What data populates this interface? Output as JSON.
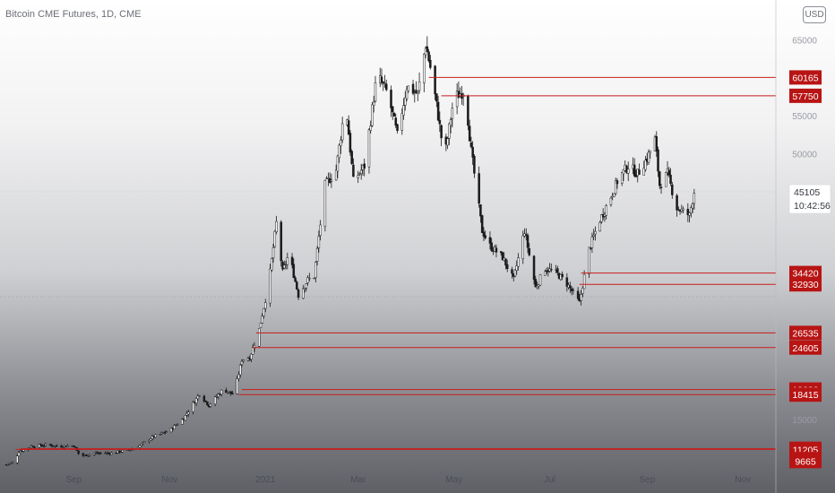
{
  "header": {
    "title": "Bitcoin CME Futures, 1D, CME",
    "currency": "USD"
  },
  "colors": {
    "level_line": "#c81c1c",
    "level_label_bg": "#b81414",
    "candle": "#1a1a1a",
    "price_line": "#ffffff"
  },
  "chart_data": {
    "type": "candlestick",
    "x_ticks": [
      {
        "label": "Sep",
        "date": "2020-09-01"
      },
      {
        "label": "Nov",
        "date": "2020-11-01"
      },
      {
        "label": "2021",
        "date": "2021-01-01"
      },
      {
        "label": "Mar",
        "date": "2021-03-01"
      },
      {
        "label": "May",
        "date": "2021-05-01"
      },
      {
        "label": "Jul",
        "date": "2021-07-01"
      },
      {
        "label": "Sep",
        "date": "2021-09-01"
      },
      {
        "label": "Nov",
        "date": "2021-11-01"
      }
    ],
    "y_ticks": [
      65000,
      55000,
      50000,
      15000
    ],
    "xlim": [
      "2020-07-16",
      "2021-11-22"
    ],
    "ylim": [
      9000,
      68000
    ],
    "series": [
      {
        "points": [
          [
            "2020-07-20",
            9200
          ],
          [
            "2020-07-25",
            9500
          ],
          [
            "2020-07-28",
            10900
          ],
          [
            "2020-08-05",
            11600
          ],
          [
            "2020-08-15",
            11800
          ],
          [
            "2020-08-22",
            11600
          ],
          [
            "2020-09-01",
            11700
          ],
          [
            "2020-09-05",
            10300
          ],
          [
            "2020-09-15",
            10700
          ],
          [
            "2020-09-25",
            10700
          ],
          [
            "2020-10-10",
            11300
          ],
          [
            "2020-10-21",
            12800
          ],
          [
            "2020-11-01",
            13700
          ],
          [
            "2020-11-10",
            15300
          ],
          [
            "2020-11-20",
            18500
          ],
          [
            "2020-11-26",
            17000
          ],
          [
            "2020-12-05",
            19100
          ],
          [
            "2020-12-12",
            18400
          ],
          [
            "2020-12-17",
            23000
          ],
          [
            "2020-12-22",
            23300
          ],
          [
            "2020-12-28",
            27000
          ],
          [
            "2021-01-03",
            32900
          ],
          [
            "2021-01-08",
            41000
          ],
          [
            "2021-01-12",
            34500
          ],
          [
            "2021-01-16",
            37000
          ],
          [
            "2021-01-22",
            31500
          ],
          [
            "2021-01-28",
            33500
          ],
          [
            "2021-02-01",
            34000
          ],
          [
            "2021-02-08",
            46000
          ],
          [
            "2021-02-15",
            48000
          ],
          [
            "2021-02-21",
            57000
          ],
          [
            "2021-02-26",
            46500
          ],
          [
            "2021-03-05",
            48500
          ],
          [
            "2021-03-13",
            60500
          ],
          [
            "2021-03-20",
            58000
          ],
          [
            "2021-03-26",
            52500
          ],
          [
            "2021-04-01",
            59000
          ],
          [
            "2021-04-08",
            58000
          ],
          [
            "2021-04-13",
            64500
          ],
          [
            "2021-04-16",
            61500
          ],
          [
            "2021-04-20",
            56500
          ],
          [
            "2021-04-25",
            49500
          ],
          [
            "2021-05-01",
            57500
          ],
          [
            "2021-05-08",
            58500
          ],
          [
            "2021-05-12",
            50500
          ],
          [
            "2021-05-19",
            40000
          ],
          [
            "2021-05-24",
            38000
          ],
          [
            "2021-06-01",
            36500
          ],
          [
            "2021-06-08",
            33500
          ],
          [
            "2021-06-15",
            40000
          ],
          [
            "2021-06-22",
            32500
          ],
          [
            "2021-06-28",
            35000
          ],
          [
            "2021-07-05",
            34500
          ],
          [
            "2021-07-12",
            33000
          ],
          [
            "2021-07-20",
            30500
          ],
          [
            "2021-07-26",
            37500
          ],
          [
            "2021-08-01",
            41000
          ],
          [
            "2021-08-08",
            44000
          ],
          [
            "2021-08-14",
            47000
          ],
          [
            "2021-08-20",
            48500
          ],
          [
            "2021-08-26",
            47500
          ],
          [
            "2021-09-01",
            49500
          ],
          [
            "2021-09-06",
            52000
          ],
          [
            "2021-09-09",
            46000
          ],
          [
            "2021-09-14",
            47500
          ],
          [
            "2021-09-20",
            43000
          ],
          [
            "2021-09-24",
            42500
          ],
          [
            "2021-09-28",
            42000
          ],
          [
            "2021-10-01",
            45105
          ]
        ]
      }
    ],
    "last_price": {
      "value": 45105,
      "label": "45105",
      "countdown": "10:42:56"
    },
    "reference_line": {
      "value": 31300
    },
    "levels": [
      {
        "value": 60165,
        "label": "60165",
        "from": "2021-04-15"
      },
      {
        "value": 57750,
        "label": "57750",
        "from": "2021-04-23"
      },
      {
        "value": 34420,
        "label": "34420",
        "from": "2021-07-21"
      },
      {
        "value": 32930,
        "label": "32930",
        "from": "2021-07-20"
      },
      {
        "value": 26535,
        "label": "26535",
        "from": "2020-12-26"
      },
      {
        "value": 24605,
        "label": "24605",
        "from": "2020-12-24"
      },
      {
        "value": 19080,
        "label": "19080",
        "from": "2020-12-17"
      },
      {
        "value": 18415,
        "label": "18415",
        "from": "2020-12-15"
      },
      {
        "value": 11280,
        "label": "11280",
        "from": "2020-07-29"
      },
      {
        "value": 11205,
        "label": "11205",
        "from": "2020-07-26"
      },
      {
        "value": 9925,
        "label": "9925",
        "from": null
      },
      {
        "value": 9665,
        "label": "9665",
        "from": null
      }
    ]
  }
}
